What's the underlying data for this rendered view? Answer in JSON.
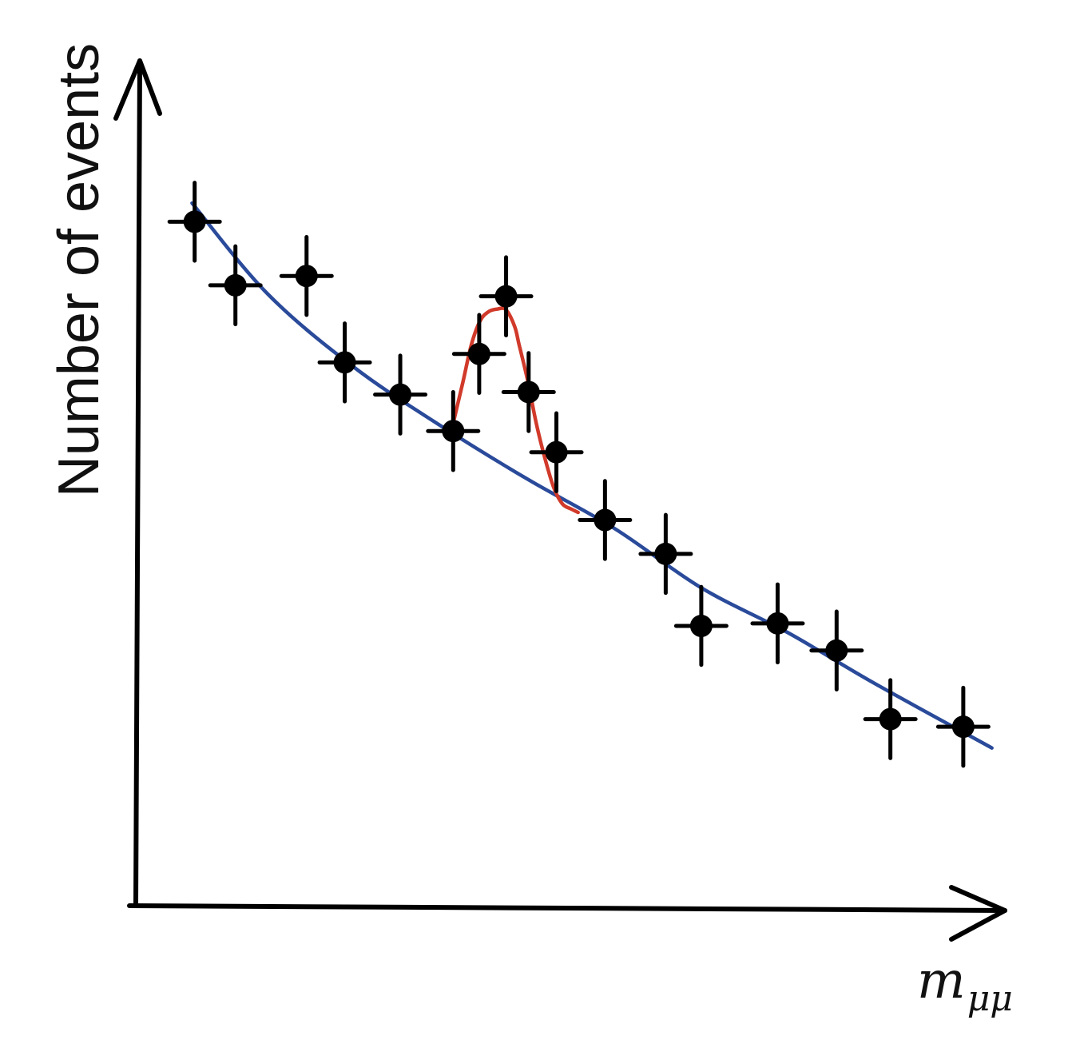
{
  "chart_data": {
    "type": "scatter",
    "ylabel": "Number of events",
    "xlabel_main": "m",
    "xlabel_sub": "μμ",
    "xlim": [
      0,
      100
    ],
    "ylim": [
      0,
      100
    ],
    "grid": false,
    "points": [
      {
        "x": 6.6,
        "y": 81.0,
        "xerr": 2.9,
        "yerr": 4.6
      },
      {
        "x": 11.3,
        "y": 73.5,
        "xerr": 2.9,
        "yerr": 4.6
      },
      {
        "x": 19.5,
        "y": 74.6,
        "xerr": 2.9,
        "yerr": 4.6
      },
      {
        "x": 23.9,
        "y": 64.4,
        "xerr": 2.9,
        "yerr": 4.6
      },
      {
        "x": 30.3,
        "y": 60.6,
        "xerr": 2.9,
        "yerr": 4.6
      },
      {
        "x": 36.4,
        "y": 56.3,
        "xerr": 2.9,
        "yerr": 4.6
      },
      {
        "x": 39.4,
        "y": 65.4,
        "xerr": 2.9,
        "yerr": 4.6
      },
      {
        "x": 42.5,
        "y": 72.2,
        "xerr": 2.9,
        "yerr": 4.6
      },
      {
        "x": 45.1,
        "y": 60.9,
        "xerr": 2.9,
        "yerr": 4.6
      },
      {
        "x": 48.3,
        "y": 53.8,
        "xerr": 2.9,
        "yerr": 4.6
      },
      {
        "x": 53.9,
        "y": 45.8,
        "xerr": 2.9,
        "yerr": 4.6
      },
      {
        "x": 60.9,
        "y": 41.8,
        "xerr": 2.9,
        "yerr": 4.6
      },
      {
        "x": 65.0,
        "y": 33.3,
        "xerr": 2.9,
        "yerr": 4.6
      },
      {
        "x": 73.8,
        "y": 33.6,
        "xerr": 2.9,
        "yerr": 4.6
      },
      {
        "x": 80.6,
        "y": 30.4,
        "xerr": 2.9,
        "yerr": 4.6
      },
      {
        "x": 86.8,
        "y": 22.3,
        "xerr": 2.9,
        "yerr": 4.6
      },
      {
        "x": 95.2,
        "y": 21.4,
        "xerr": 2.9,
        "yerr": 4.6
      }
    ],
    "background_fit": {
      "color": "#2a4a9a",
      "x": [
        6.3,
        15,
        25,
        35,
        45,
        55,
        65,
        75,
        85,
        98.5
      ],
      "y": [
        83.2,
        72.5,
        63.8,
        56.9,
        50.6,
        44.8,
        37.8,
        32.5,
        26.5,
        18.9
      ]
    },
    "signal_fit": {
      "color": "#d13a2a",
      "x": [
        36.4,
        37.5,
        38.5,
        39.5,
        40.5,
        41.5,
        42.5,
        43.5,
        44.0,
        45.0,
        46.0,
        47.0,
        48.0,
        49.0,
        50.0,
        50.8
      ],
      "y": [
        57.2,
        62.0,
        66.5,
        69.3,
        70.4,
        70.7,
        70.6,
        68.6,
        66.5,
        62.2,
        57.1,
        53.0,
        49.6,
        47.7,
        47.1,
        46.7
      ]
    },
    "marker_color": "#000000",
    "axis_color": "#000000"
  }
}
